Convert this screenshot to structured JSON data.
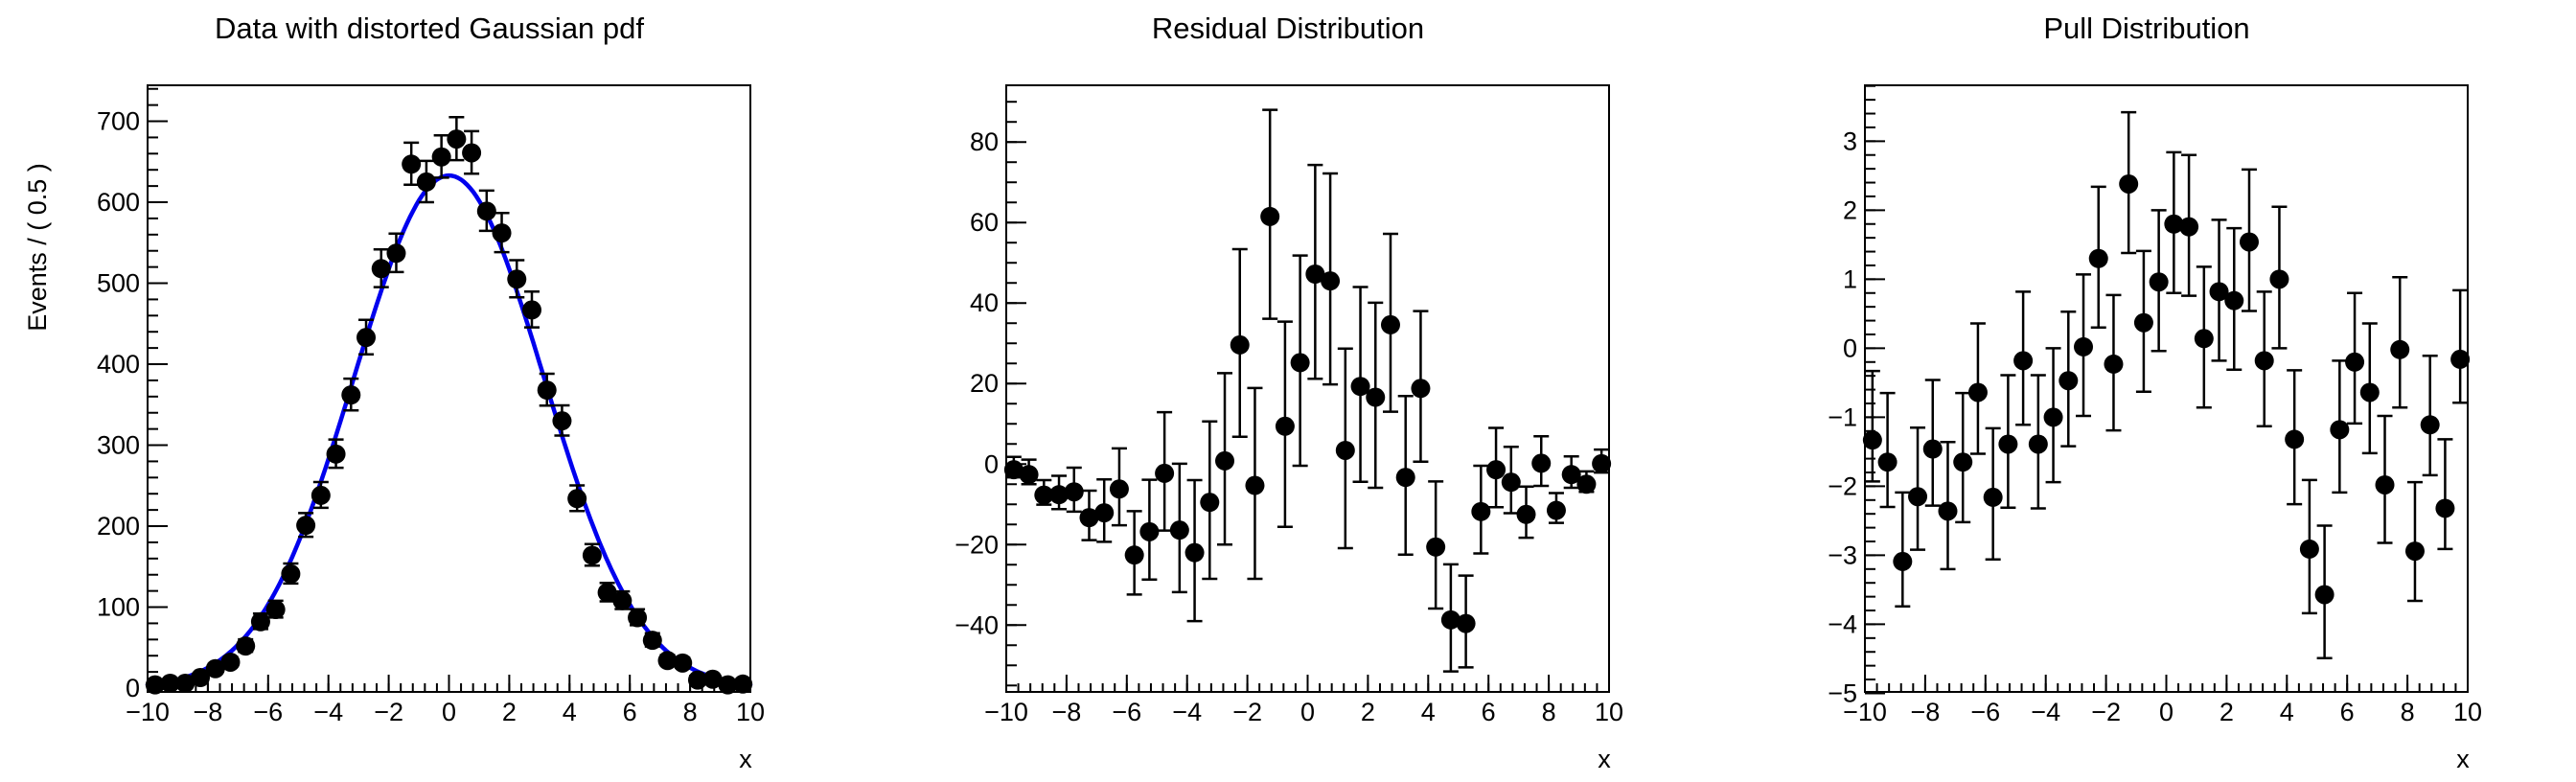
{
  "page": {
    "background": "#ffffff",
    "foreground": "#000000",
    "curve_color": "#0000ee",
    "marker_color": "#000000"
  },
  "chart_data": [
    {
      "type": "scatter",
      "title": "Data with distorted Gaussian pdf",
      "xlabel": "x",
      "ylabel": "Events / ( 0.5 )",
      "xlim": [
        -10,
        10
      ],
      "ylim": [
        -4.7,
        744.4
      ],
      "xticks": [
        -10,
        -8,
        -6,
        -4,
        -2,
        0,
        2,
        4,
        6,
        8,
        10
      ],
      "xtick_labels": [
        "−10",
        "−8",
        "−6",
        "−4",
        "−2",
        "0",
        "2",
        "4",
        "6",
        "8",
        "10"
      ],
      "yticks": [
        0,
        100,
        200,
        300,
        400,
        500,
        600,
        700
      ],
      "ytick_labels": [
        "0",
        "100",
        "200",
        "300",
        "400",
        "500",
        "600",
        "700"
      ],
      "minor_x_step": 0.4,
      "minor_y_step": 20,
      "grid": false,
      "legend": "none",
      "bin_width": 0.5,
      "x": [
        -9.75,
        -9.25,
        -8.75,
        -8.25,
        -7.75,
        -7.25,
        -6.75,
        -6.25,
        -5.75,
        -5.25,
        -4.75,
        -4.25,
        -3.75,
        -3.25,
        -2.75,
        -2.25,
        -1.75,
        -1.25,
        -0.75,
        -0.25,
        0.25,
        0.75,
        1.25,
        1.75,
        2.25,
        2.75,
        3.25,
        3.75,
        4.25,
        4.75,
        5.25,
        5.75,
        6.25,
        6.75,
        7.25,
        7.75,
        8.25,
        8.75,
        9.25,
        9.75
      ],
      "y": [
        4,
        6,
        6,
        13,
        24,
        32,
        52,
        82,
        97,
        141,
        201,
        238,
        289,
        362,
        433,
        518,
        537,
        647,
        625,
        656,
        678,
        661,
        589,
        562,
        505,
        467,
        368,
        330,
        234,
        164,
        118,
        108,
        87,
        59,
        34,
        31,
        10,
        11,
        4,
        5
      ],
      "err_lo": [
        1.9,
        2.4,
        2.4,
        3.6,
        4.9,
        5.6,
        7.2,
        9.0,
        9.8,
        11.9,
        14.2,
        15.4,
        17.0,
        19.0,
        20.8,
        22.8,
        23.2,
        25.4,
        25.0,
        25.6,
        26.0,
        25.7,
        24.3,
        23.7,
        22.5,
        21.6,
        19.2,
        18.2,
        15.3,
        12.8,
        10.9,
        10.4,
        9.3,
        7.7,
        5.8,
        5.6,
        3.1,
        3.3,
        1.9,
        2.2
      ],
      "err_hi": [
        3.2,
        3.7,
        3.7,
        4.7,
        6.0,
        6.7,
        8.3,
        10.1,
        10.9,
        12.9,
        15.2,
        16.5,
        18.0,
        20.1,
        21.8,
        23.8,
        24.2,
        26.5,
        26.0,
        26.6,
        27.1,
        26.7,
        25.3,
        24.7,
        23.5,
        22.6,
        20.2,
        19.2,
        16.3,
        13.8,
        11.9,
        11.4,
        10.4,
        8.8,
        6.9,
        6.7,
        4.3,
        4.5,
        3.2,
        3.5
      ],
      "curve": {
        "shape": "gaussian",
        "mean": 0,
        "sigma": 3.15,
        "amplitude": 633
      }
    },
    {
      "type": "scatter",
      "title": "Residual Distribution",
      "xlabel": "x",
      "ylabel": "",
      "xlim": [
        -10,
        10
      ],
      "ylim": [
        -56.6,
        94.1
      ],
      "xticks": [
        -10,
        -8,
        -6,
        -4,
        -2,
        0,
        2,
        4,
        6,
        8,
        10
      ],
      "xtick_labels": [
        "−10",
        "−8",
        "−6",
        "−4",
        "−2",
        "0",
        "2",
        "4",
        "6",
        "8",
        "10"
      ],
      "yticks": [
        -40,
        -20,
        0,
        20,
        40,
        60,
        80
      ],
      "ytick_labels": [
        "−40",
        "−20",
        "0",
        "20",
        "40",
        "60",
        "80"
      ],
      "minor_x_step": 0.4,
      "minor_y_step": 5,
      "grid": false,
      "legend": "none",
      "bin_width": 0.5,
      "x": [
        -9.75,
        -9.25,
        -8.75,
        -8.25,
        -7.75,
        -7.25,
        -6.75,
        -6.25,
        -5.75,
        -5.25,
        -4.75,
        -4.25,
        -3.75,
        -3.25,
        -2.75,
        -2.25,
        -1.75,
        -1.25,
        -0.75,
        -0.25,
        0.25,
        0.75,
        1.25,
        1.75,
        2.25,
        2.75,
        3.25,
        3.75,
        4.25,
        4.75,
        5.25,
        5.75,
        6.25,
        6.75,
        7.25,
        7.75,
        8.25,
        8.75,
        9.25,
        9.75
      ],
      "y": [
        -1.4,
        -2.6,
        -7.7,
        -7.6,
        -6.9,
        -13.3,
        -12.1,
        -6.2,
        -22.6,
        -16.8,
        -2.3,
        -16.4,
        -22.0,
        -9.5,
        0.8,
        29.6,
        -5.3,
        61.5,
        9.4,
        25.2,
        47.2,
        45.5,
        3.4,
        19.3,
        16.6,
        34.6,
        -3.3,
        18.8,
        -20.6,
        -38.7,
        -39.6,
        -11.8,
        -1.4,
        -4.5,
        -12.5,
        0.2,
        -11.5,
        -2.6,
        -5.0,
        0.1
      ],
      "err_lo": [
        1.9,
        2.4,
        2.4,
        3.6,
        4.9,
        5.6,
        7.2,
        9.0,
        9.8,
        11.9,
        14.2,
        15.4,
        17.0,
        19.0,
        20.8,
        22.8,
        23.2,
        25.4,
        25.0,
        25.6,
        26.0,
        25.7,
        24.3,
        23.7,
        22.5,
        21.6,
        19.2,
        18.2,
        15.3,
        12.8,
        10.9,
        10.4,
        9.3,
        7.7,
        5.8,
        5.6,
        3.1,
        3.3,
        1.9,
        2.2
      ],
      "err_hi": [
        3.2,
        3.7,
        3.7,
        4.7,
        6.0,
        6.7,
        8.3,
        10.1,
        10.9,
        12.9,
        15.2,
        16.5,
        18.0,
        20.1,
        21.8,
        23.8,
        24.2,
        26.5,
        26.0,
        26.6,
        27.1,
        26.7,
        25.3,
        24.7,
        23.5,
        22.6,
        20.2,
        19.2,
        16.3,
        13.8,
        11.9,
        11.4,
        10.4,
        8.8,
        6.9,
        6.7,
        4.3,
        4.5,
        3.2,
        3.5
      ],
      "curve": null
    },
    {
      "type": "scatter",
      "title": "Pull Distribution",
      "xlabel": "x",
      "ylabel": "",
      "xlim": [
        -10,
        10
      ],
      "ylim": [
        -4.98,
        3.81
      ],
      "xticks": [
        -10,
        -8,
        -6,
        -4,
        -2,
        0,
        2,
        4,
        6,
        8,
        10
      ],
      "xtick_labels": [
        "−10",
        "−8",
        "−6",
        "−4",
        "−2",
        "0",
        "2",
        "4",
        "6",
        "8",
        "10"
      ],
      "yticks": [
        -5,
        -4,
        -3,
        -2,
        -1,
        0,
        1,
        2,
        3
      ],
      "ytick_labels": [
        "−5",
        "−4",
        "−3",
        "−2",
        "−1",
        "0",
        "1",
        "2",
        "3"
      ],
      "minor_x_step": 0.4,
      "minor_y_step": 0.2,
      "grid": false,
      "legend": "none",
      "bin_width": 0.5,
      "x": [
        -9.75,
        -9.25,
        -8.75,
        -8.25,
        -7.75,
        -7.25,
        -6.75,
        -6.25,
        -5.75,
        -5.25,
        -4.75,
        -4.25,
        -3.75,
        -3.25,
        -2.75,
        -2.25,
        -1.75,
        -1.25,
        -0.75,
        -0.25,
        0.25,
        0.75,
        1.25,
        1.75,
        2.25,
        2.75,
        3.25,
        3.75,
        4.25,
        4.75,
        5.25,
        5.75,
        6.25,
        6.75,
        7.25,
        7.75,
        8.25,
        8.75,
        9.25,
        9.75
      ],
      "y": [
        -1.33,
        -1.65,
        -3.09,
        -2.15,
        -1.46,
        -2.36,
        -1.65,
        -0.64,
        -2.16,
        -1.39,
        -0.18,
        -1.39,
        -1.0,
        -0.47,
        0.02,
        1.3,
        -0.23,
        2.38,
        0.37,
        0.96,
        1.8,
        1.76,
        0.14,
        0.82,
        0.69,
        1.54,
        -0.18,
        1.0,
        -1.32,
        -2.91,
        -3.57,
        -1.18,
        -0.2,
        -0.64,
        -1.98,
        -0.02,
        -2.94,
        -1.11,
        -2.32,
        -0.16
      ],
      "err_lo": [
        0.6,
        0.65,
        0.65,
        0.77,
        0.82,
        0.84,
        0.87,
        0.89,
        0.9,
        0.92,
        0.93,
        0.93,
        0.94,
        0.95,
        1,
        1,
        0.96,
        1,
        1,
        1,
        1,
        1,
        1,
        1,
        1,
        1,
        0.95,
        1,
        0.94,
        0.93,
        0.92,
        0.91,
        0.89,
        0.88,
        0.84,
        0.84,
        0.72,
        0.73,
        0.59,
        0.63
      ],
      "err_hi": [
        1,
        1,
        1,
        1,
        1,
        1,
        1,
        1,
        1,
        1,
        1,
        1,
        1,
        1,
        1.05,
        1.04,
        1,
        1.04,
        1.04,
        1.04,
        1.04,
        1.04,
        1.04,
        1.04,
        1.05,
        1.05,
        1,
        1.05,
        1,
        1,
        1,
        1,
        1,
        1,
        1,
        1.05,
        1,
        1,
        1,
        1
      ],
      "curve": null
    }
  ]
}
